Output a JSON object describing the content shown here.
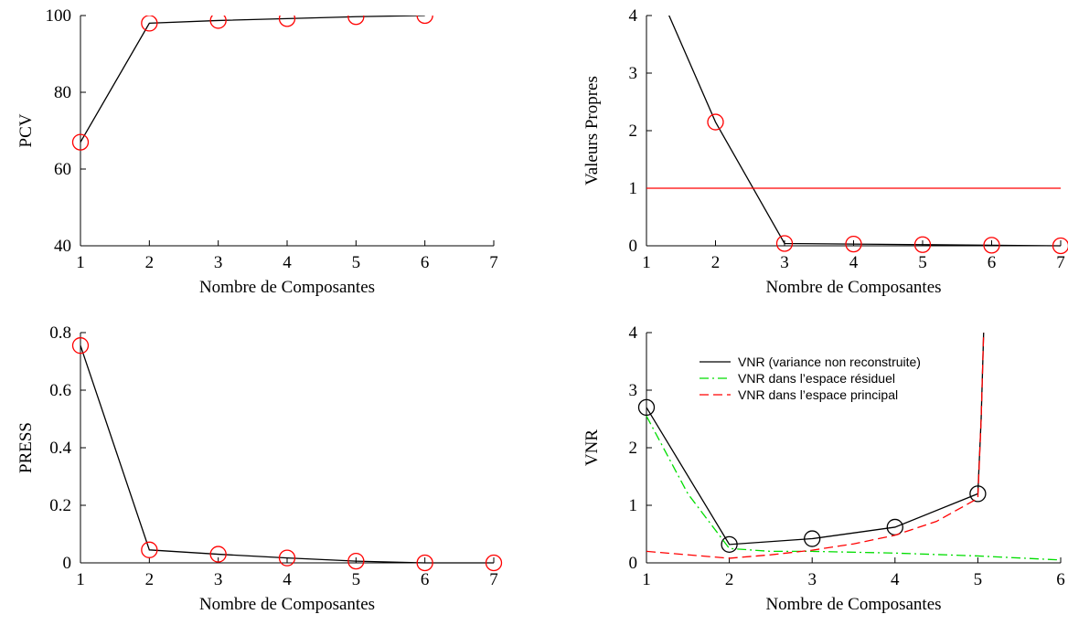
{
  "chart_data": [
    {
      "type": "line",
      "xlabel": "Nombre de Composantes",
      "ylabel": "PCV",
      "xlim": [
        1,
        7
      ],
      "ylim": [
        40,
        100
      ],
      "xticks": [
        "1",
        "2",
        "3",
        "4",
        "5",
        "6",
        "7"
      ],
      "yticks": [
        "40",
        "60",
        "80",
        "100"
      ],
      "series": [
        {
          "x": [
            1,
            2,
            3,
            4,
            5,
            6
          ],
          "y": [
            67,
            98,
            98.7,
            99.2,
            99.7,
            100
          ],
          "color": "#000000",
          "marker": "circle",
          "marker_color": "#ff0000"
        }
      ]
    },
    {
      "type": "line",
      "xlabel": "Nombre de Composantes",
      "ylabel": "Valeurs Propres",
      "xlim": [
        1,
        7
      ],
      "ylim": [
        0,
        4
      ],
      "xticks": [
        "1",
        "2",
        "3",
        "4",
        "5",
        "6",
        "7"
      ],
      "yticks": [
        "0",
        "1",
        "2",
        "3",
        "4"
      ],
      "series": [
        {
          "x": [
            1,
            2,
            3,
            4,
            5,
            6,
            7
          ],
          "y": [
            4.9,
            2.15,
            0.04,
            0.03,
            0.02,
            0.01,
            0.0
          ],
          "color": "#000000",
          "marker": "circle",
          "marker_color": "#ff0000",
          "marker_from_index": 1
        },
        {
          "x": [
            1,
            7
          ],
          "y": [
            1,
            1
          ],
          "color": "#ff0000",
          "marker": "none"
        }
      ]
    },
    {
      "type": "line",
      "xlabel": "Nombre de Composantes",
      "ylabel": "PRESS",
      "xlim": [
        1,
        7
      ],
      "ylim": [
        0,
        0.8
      ],
      "xticks": [
        "1",
        "2",
        "3",
        "4",
        "5",
        "6",
        "7"
      ],
      "yticks": [
        "0",
        "0.2",
        "0.4",
        "0.6",
        "0.8"
      ],
      "series": [
        {
          "x": [
            1,
            2,
            3,
            4,
            5,
            6,
            7
          ],
          "y": [
            0.755,
            0.045,
            0.03,
            0.017,
            0.006,
            0.0,
            0.0
          ],
          "color": "#000000",
          "marker": "circle",
          "marker_color": "#ff0000"
        }
      ]
    },
    {
      "type": "line",
      "xlabel": "Nombre de Composantes",
      "ylabel": "VNR",
      "xlim": [
        1,
        6
      ],
      "ylim": [
        0,
        4
      ],
      "xticks": [
        "1",
        "2",
        "3",
        "4",
        "5",
        "6"
      ],
      "yticks": [
        "0",
        "1",
        "2",
        "3",
        "4"
      ],
      "legend": "top-center",
      "series": [
        {
          "name": "VNR (variance non reconstruite)",
          "x": [
            1,
            2,
            3,
            4,
            5,
            5.04,
            5.07
          ],
          "y": [
            2.7,
            0.32,
            0.42,
            0.62,
            1.2,
            2.5,
            4.0
          ],
          "color": "#000000",
          "dash": "",
          "marker": "circle",
          "marker_color": "#000000",
          "marker_count": 5
        },
        {
          "name": "VNR dans l’espace résiduel",
          "x": [
            1,
            1.5,
            2,
            2.5,
            3,
            4,
            5,
            6
          ],
          "y": [
            2.55,
            1.2,
            0.25,
            0.2,
            0.2,
            0.17,
            0.12,
            0.05
          ],
          "color": "#00dd00",
          "dash": "10 4 2 4"
        },
        {
          "name": "VNR dans l’espace principal",
          "x": [
            1,
            2,
            2.5,
            3,
            3.5,
            4,
            4.5,
            5,
            5.04,
            5.07
          ],
          "y": [
            0.2,
            0.08,
            0.14,
            0.22,
            0.33,
            0.48,
            0.72,
            1.12,
            2.5,
            4.0
          ],
          "color": "#ff0000",
          "dash": "10 5"
        }
      ]
    }
  ]
}
